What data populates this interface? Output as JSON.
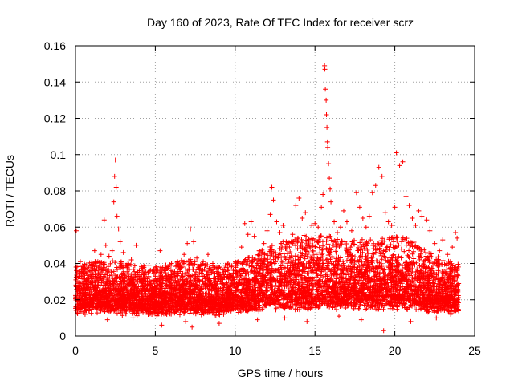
{
  "chart_data": {
    "type": "scatter",
    "title": "Day 160 of 2023, Rate Of TEC Index for receiver scrz",
    "xlabel": "GPS time / hours",
    "ylabel": "ROTI / TECUs",
    "xlim": [
      0,
      25
    ],
    "ylim": [
      0,
      0.16
    ],
    "x_ticks": [
      0,
      5,
      10,
      15,
      20,
      25
    ],
    "y_ticks": [
      0,
      0.02,
      0.04,
      0.06,
      0.08,
      0.1,
      0.12,
      0.14,
      0.16
    ],
    "x_tick_labels": [
      "0",
      "5",
      "10",
      "15",
      "20",
      "25"
    ],
    "y_tick_labels": [
      "0",
      "0.02",
      "0.04",
      "0.06",
      "0.08",
      "0.1",
      "0.12",
      "0.14",
      "0.16"
    ],
    "grid": true,
    "marker": "+",
    "color": "#ff0000",
    "series": [
      {
        "name": "ROTI",
        "points": [
          [
            0.05,
            0.058
          ],
          [
            0.1,
            0.035
          ],
          [
            0.2,
            0.028
          ],
          [
            0.3,
            0.041
          ],
          [
            0.4,
            0.022
          ],
          [
            0.5,
            0.038
          ],
          [
            0.7,
            0.03
          ],
          [
            0.9,
            0.036
          ],
          [
            1.0,
            0.033
          ],
          [
            1.2,
            0.047
          ],
          [
            1.4,
            0.041
          ],
          [
            1.6,
            0.045
          ],
          [
            1.8,
            0.064
          ],
          [
            1.9,
            0.05
          ],
          [
            2.1,
            0.044
          ],
          [
            2.3,
            0.047
          ],
          [
            2.4,
            0.074
          ],
          [
            2.45,
            0.088
          ],
          [
            2.5,
            0.097
          ],
          [
            2.55,
            0.082
          ],
          [
            2.6,
            0.066
          ],
          [
            2.7,
            0.059
          ],
          [
            2.8,
            0.052
          ],
          [
            3.0,
            0.046
          ],
          [
            3.2,
            0.039
          ],
          [
            3.5,
            0.042
          ],
          [
            3.8,
            0.05
          ],
          [
            4.0,
            0.036
          ],
          [
            4.3,
            0.034
          ],
          [
            4.6,
            0.039
          ],
          [
            5.0,
            0.033
          ],
          [
            5.3,
            0.047
          ],
          [
            5.6,
            0.036
          ],
          [
            5.9,
            0.031
          ],
          [
            6.2,
            0.035
          ],
          [
            6.5,
            0.038
          ],
          [
            6.8,
            0.045
          ],
          [
            7.0,
            0.051
          ],
          [
            7.2,
            0.059
          ],
          [
            7.4,
            0.052
          ],
          [
            7.6,
            0.043
          ],
          [
            7.8,
            0.037
          ],
          [
            8.0,
            0.041
          ],
          [
            8.3,
            0.045
          ],
          [
            8.6,
            0.04
          ],
          [
            8.9,
            0.038
          ],
          [
            9.2,
            0.034
          ],
          [
            9.5,
            0.033
          ],
          [
            9.8,
            0.031
          ],
          [
            10.0,
            0.036
          ],
          [
            10.2,
            0.041
          ],
          [
            10.4,
            0.049
          ],
          [
            10.6,
            0.062
          ],
          [
            10.8,
            0.056
          ],
          [
            11.0,
            0.063
          ],
          [
            11.2,
            0.055
          ],
          [
            11.5,
            0.047
          ],
          [
            11.8,
            0.051
          ],
          [
            12.0,
            0.058
          ],
          [
            12.2,
            0.067
          ],
          [
            12.3,
            0.082
          ],
          [
            12.4,
            0.075
          ],
          [
            12.6,
            0.063
          ],
          [
            12.8,
            0.057
          ],
          [
            13.0,
            0.061
          ],
          [
            13.2,
            0.052
          ],
          [
            13.4,
            0.049
          ],
          [
            13.6,
            0.056
          ],
          [
            13.8,
            0.072
          ],
          [
            14.0,
            0.076
          ],
          [
            14.2,
            0.065
          ],
          [
            14.4,
            0.068
          ],
          [
            14.6,
            0.053
          ],
          [
            14.8,
            0.061
          ],
          [
            15.0,
            0.062
          ],
          [
            15.2,
            0.06
          ],
          [
            15.4,
            0.071
          ],
          [
            15.5,
            0.078
          ],
          [
            15.6,
            0.149
          ],
          [
            15.62,
            0.147
          ],
          [
            15.65,
            0.136
          ],
          [
            15.7,
            0.13
          ],
          [
            15.72,
            0.122
          ],
          [
            15.75,
            0.115
          ],
          [
            15.78,
            0.107
          ],
          [
            15.8,
            0.104
          ],
          [
            15.85,
            0.095
          ],
          [
            15.9,
            0.087
          ],
          [
            15.95,
            0.081
          ],
          [
            16.0,
            0.074
          ],
          [
            16.2,
            0.063
          ],
          [
            16.4,
            0.057
          ],
          [
            16.6,
            0.06
          ],
          [
            16.8,
            0.069
          ],
          [
            17.0,
            0.063
          ],
          [
            17.3,
            0.058
          ],
          [
            17.6,
            0.079
          ],
          [
            17.8,
            0.071
          ],
          [
            18.0,
            0.065
          ],
          [
            18.2,
            0.06
          ],
          [
            18.4,
            0.066
          ],
          [
            18.6,
            0.079
          ],
          [
            18.8,
            0.083
          ],
          [
            19.0,
            0.093
          ],
          [
            19.2,
            0.088
          ],
          [
            19.4,
            0.068
          ],
          [
            19.6,
            0.063
          ],
          [
            19.8,
            0.061
          ],
          [
            20.0,
            0.071
          ],
          [
            20.1,
            0.101
          ],
          [
            20.3,
            0.094
          ],
          [
            20.5,
            0.096
          ],
          [
            20.7,
            0.077
          ],
          [
            20.9,
            0.072
          ],
          [
            21.1,
            0.065
          ],
          [
            21.3,
            0.061
          ],
          [
            21.5,
            0.069
          ],
          [
            21.7,
            0.066
          ],
          [
            22.0,
            0.064
          ],
          [
            22.2,
            0.058
          ],
          [
            22.5,
            0.051
          ],
          [
            22.8,
            0.047
          ],
          [
            23.0,
            0.053
          ],
          [
            23.3,
            0.045
          ],
          [
            23.6,
            0.049
          ],
          [
            23.8,
            0.057
          ],
          [
            23.9,
            0.054
          ],
          [
            0.6,
            0.012
          ],
          [
            2.0,
            0.009
          ],
          [
            3.6,
            0.01
          ],
          [
            5.4,
            0.006
          ],
          [
            6.9,
            0.008
          ],
          [
            7.3,
            0.005
          ],
          [
            9.0,
            0.007
          ],
          [
            11.4,
            0.009
          ],
          [
            13.1,
            0.01
          ],
          [
            14.5,
            0.008
          ],
          [
            16.5,
            0.011
          ],
          [
            17.9,
            0.009
          ],
          [
            19.3,
            0.003
          ],
          [
            21.0,
            0.008
          ],
          [
            22.6,
            0.01
          ],
          [
            23.5,
            0.012
          ]
        ],
        "band": [
          [
            0,
            0.012,
            0.03
          ],
          [
            1,
            0.012,
            0.032
          ],
          [
            2,
            0.012,
            0.033
          ],
          [
            3,
            0.011,
            0.032
          ],
          [
            4,
            0.011,
            0.03
          ],
          [
            5,
            0.011,
            0.03
          ],
          [
            6,
            0.011,
            0.031
          ],
          [
            7,
            0.011,
            0.033
          ],
          [
            8,
            0.011,
            0.031
          ],
          [
            9,
            0.011,
            0.03
          ],
          [
            10,
            0.012,
            0.032
          ],
          [
            11,
            0.012,
            0.034
          ],
          [
            12,
            0.013,
            0.038
          ],
          [
            13,
            0.013,
            0.04
          ],
          [
            14,
            0.013,
            0.042
          ],
          [
            15,
            0.013,
            0.043
          ],
          [
            16,
            0.013,
            0.042
          ],
          [
            17,
            0.013,
            0.04
          ],
          [
            18,
            0.013,
            0.041
          ],
          [
            19,
            0.013,
            0.041
          ],
          [
            20,
            0.013,
            0.042
          ],
          [
            21,
            0.013,
            0.041
          ],
          [
            22,
            0.012,
            0.036
          ],
          [
            23,
            0.012,
            0.033
          ],
          [
            24,
            0.012,
            0.031
          ]
        ]
      }
    ]
  }
}
